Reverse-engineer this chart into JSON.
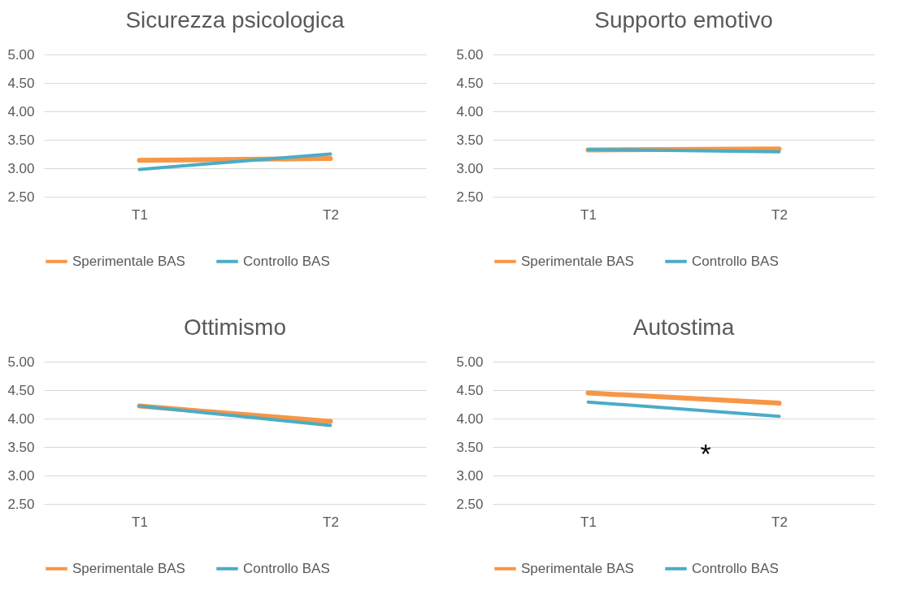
{
  "chart_data": [
    {
      "type": "line",
      "title": "Sicurezza psicologica",
      "categories": [
        "T1",
        "T2"
      ],
      "series": [
        {
          "name": "Sperimentale BAS",
          "color": "#f79646",
          "values": [
            3.14,
            3.17
          ]
        },
        {
          "name": "Controllo BAS",
          "color": "#4bacc6",
          "values": [
            2.98,
            3.25
          ]
        }
      ],
      "ylim": [
        2.5,
        5
      ],
      "yticks": [
        {
          "value": 2.5,
          "label": "2.50"
        },
        {
          "value": 3,
          "label": "3.00"
        },
        {
          "value": 3.5,
          "label": "3.50"
        },
        {
          "value": 4,
          "label": "4.00"
        },
        {
          "value": 4.5,
          "label": "4.50"
        },
        {
          "value": 5,
          "label": "5.00"
        }
      ],
      "grid": "y",
      "legend": "bottom"
    },
    {
      "type": "line",
      "title": "Supporto emotivo",
      "categories": [
        "T1",
        "T2"
      ],
      "series": [
        {
          "name": "Sperimentale BAS",
          "color": "#f79646",
          "values": [
            3.32,
            3.34
          ]
        },
        {
          "name": "Controllo BAS",
          "color": "#4bacc6",
          "values": [
            3.33,
            3.29
          ]
        }
      ],
      "ylim": [
        2.5,
        5
      ],
      "yticks": [
        {
          "value": 2.5,
          "label": "2.50"
        },
        {
          "value": 3,
          "label": "3.00"
        },
        {
          "value": 3.5,
          "label": "3.50"
        },
        {
          "value": 4,
          "label": "4.00"
        },
        {
          "value": 4.5,
          "label": "4.50"
        },
        {
          "value": 5,
          "label": "5.00"
        }
      ],
      "grid": "y",
      "legend": "bottom"
    },
    {
      "type": "line",
      "title": "Ottimismo",
      "categories": [
        "T1",
        "T2"
      ],
      "series": [
        {
          "name": "Sperimentale BAS",
          "color": "#f79646",
          "values": [
            4.22,
            3.95
          ]
        },
        {
          "name": "Controllo BAS",
          "color": "#4bacc6",
          "values": [
            4.22,
            3.88
          ]
        }
      ],
      "ylim": [
        2.5,
        5
      ],
      "yticks": [
        {
          "value": 2.5,
          "label": "2.50"
        },
        {
          "value": 3,
          "label": "3.00"
        },
        {
          "value": 3.5,
          "label": "3.50"
        },
        {
          "value": 4,
          "label": "4.00"
        },
        {
          "value": 4.5,
          "label": "4.50"
        },
        {
          "value": 5,
          "label": "5.00"
        }
      ],
      "grid": "y",
      "legend": "bottom"
    },
    {
      "type": "line",
      "title": "Autostima",
      "categories": [
        "T1",
        "T2"
      ],
      "series": [
        {
          "name": "Sperimentale BAS",
          "color": "#f79646",
          "values": [
            4.45,
            4.27
          ]
        },
        {
          "name": "Controllo BAS",
          "color": "#4bacc6",
          "values": [
            4.29,
            4.04
          ]
        }
      ],
      "ylim": [
        2.5,
        5
      ],
      "yticks": [
        {
          "value": 2.5,
          "label": "2.50"
        },
        {
          "value": 3,
          "label": "3.00"
        },
        {
          "value": 3.5,
          "label": "3.50"
        },
        {
          "value": 4,
          "label": "4.00"
        },
        {
          "value": 4.5,
          "label": "4.50"
        },
        {
          "value": 5,
          "label": "5.00"
        }
      ],
      "grid": "y",
      "legend": "bottom",
      "annotations": [
        "*"
      ]
    }
  ]
}
